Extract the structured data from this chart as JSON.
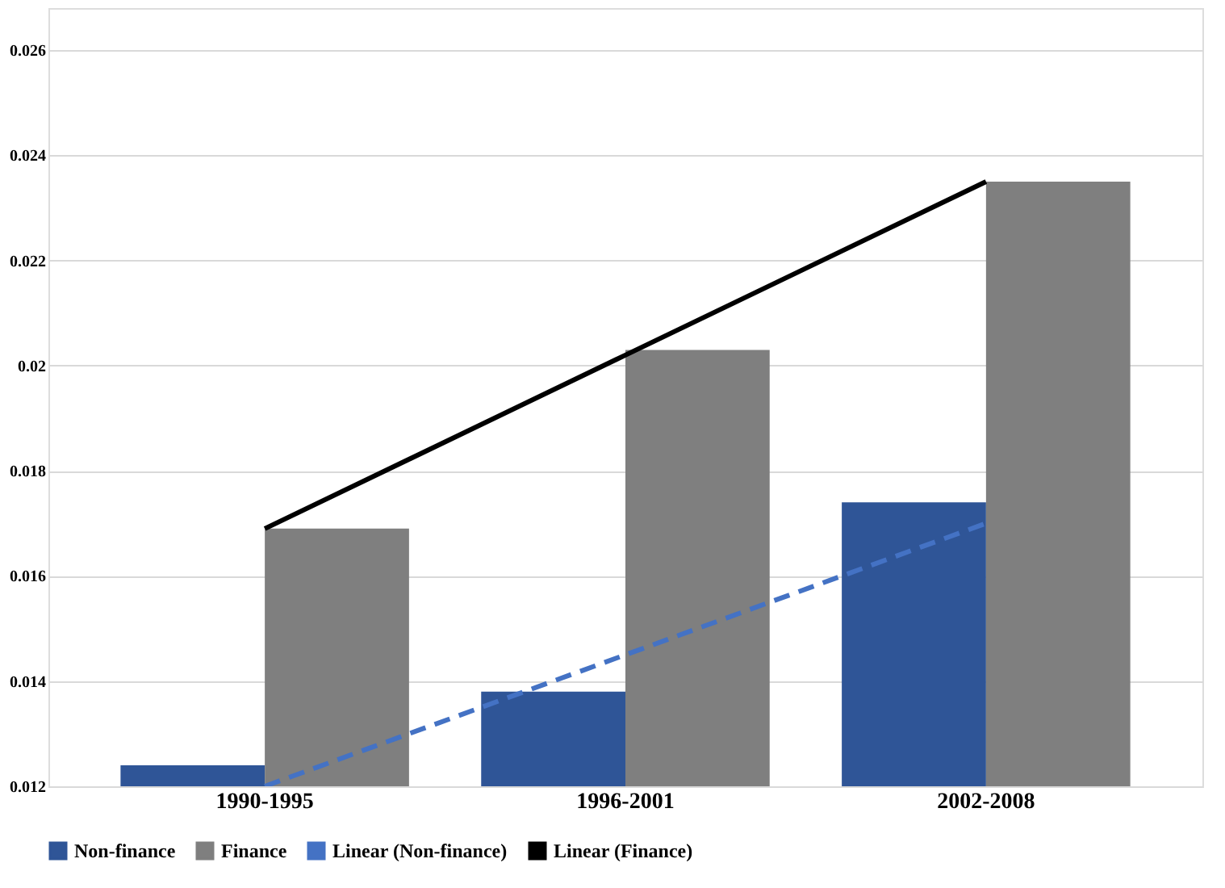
{
  "chart_data": {
    "type": "bar",
    "categories": [
      "1990-1995",
      "1996-2001",
      "2002-2008"
    ],
    "series": [
      {
        "name": "Non-finance",
        "color": "#2f5597",
        "values": [
          0.0124,
          0.0138,
          0.0174
        ]
      },
      {
        "name": "Finance",
        "color": "#7f7f7f",
        "values": [
          0.0169,
          0.0203,
          0.0235
        ]
      },
      {
        "name": "Linear (Non-finance)",
        "type": "line",
        "line_style": "dashed",
        "color": "#4472c4",
        "values": [
          0.012,
          0.0145,
          0.017
        ]
      },
      {
        "name": "Linear (Finance)",
        "type": "line",
        "line_style": "solid",
        "color": "#000000",
        "values": [
          0.0169,
          0.0202,
          0.0235
        ]
      }
    ],
    "ylim": [
      0.012,
      0.0268
    ],
    "yticks": [
      0.012,
      0.014,
      0.016,
      0.018,
      0.02,
      0.022,
      0.024,
      0.026
    ],
    "grid": "y",
    "legend": "bottom"
  }
}
